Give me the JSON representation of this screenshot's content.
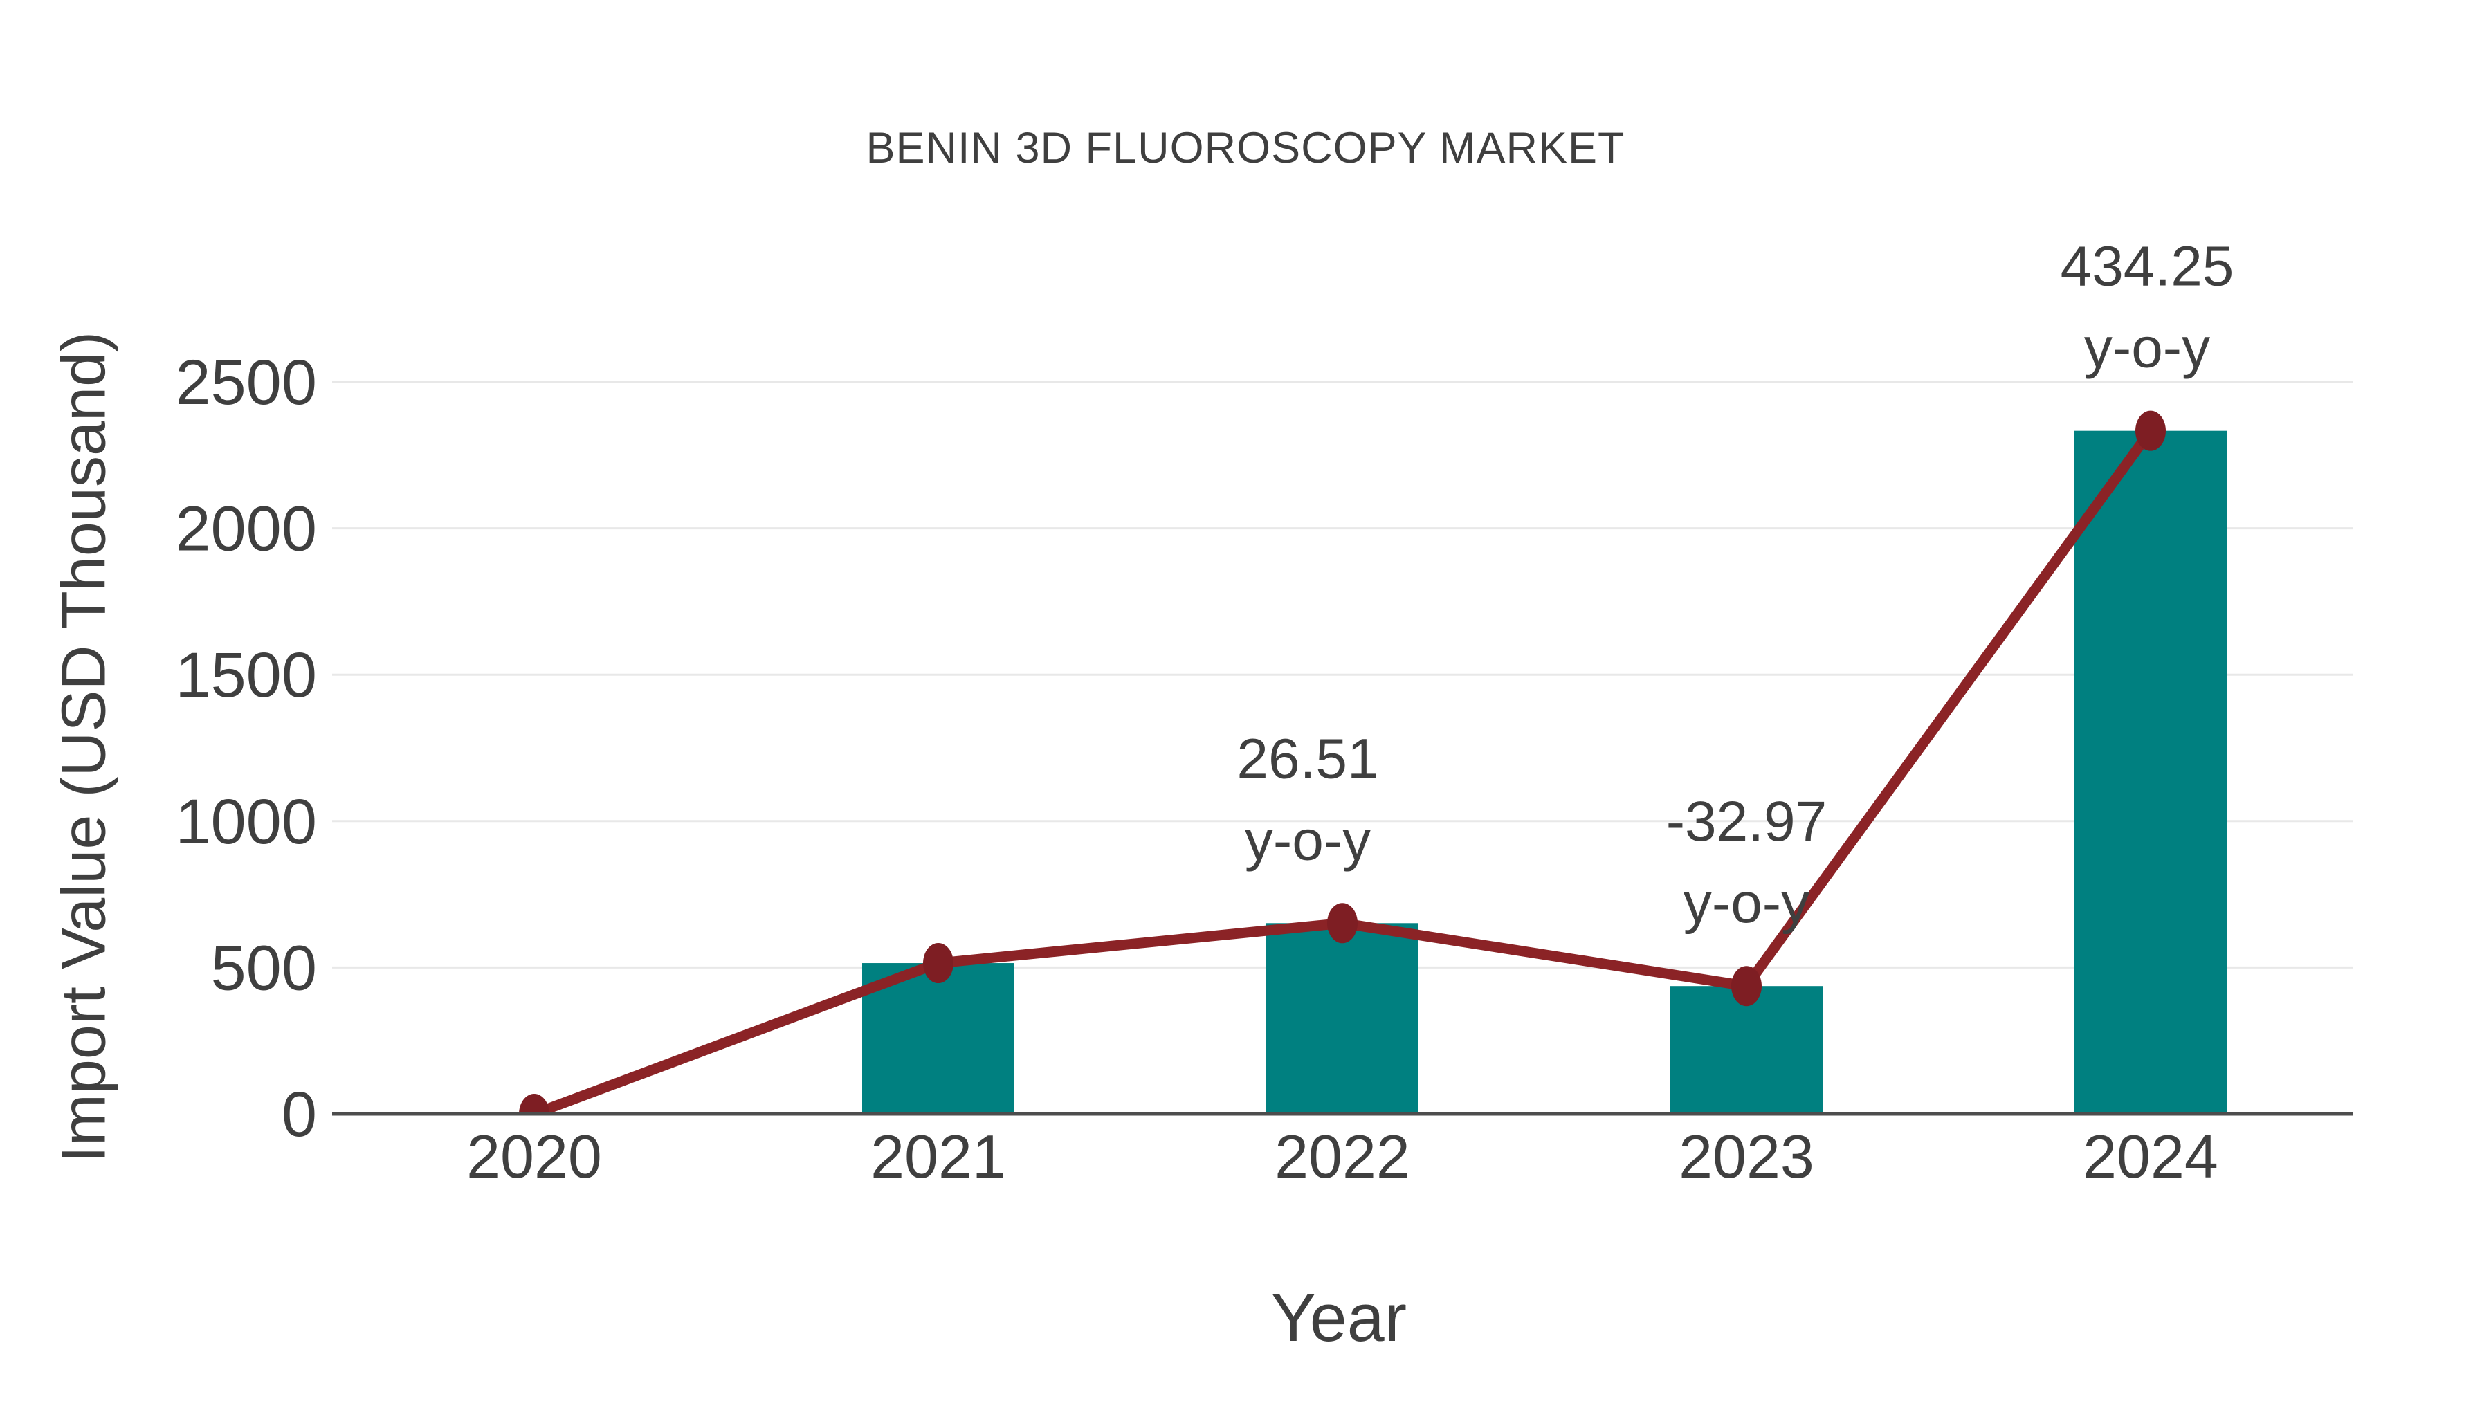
{
  "chart_data": {
    "type": "bar",
    "title": "BENIN 3D FLUOROSCOPY MARKET",
    "xlabel": "Year",
    "ylabel": "Import Value (USD Thousand)",
    "categories": [
      "2020",
      "2021",
      "2022",
      "2023",
      "2024"
    ],
    "y_ticks": [
      0,
      500,
      1000,
      1500,
      2000,
      2500
    ],
    "ylim": [
      0,
      2500
    ],
    "grid": "horizontal",
    "legend_position": "none",
    "series": [
      {
        "name": "Import Value bars",
        "type": "bar",
        "values": [
          0,
          515,
          651.5,
          436.7,
          2333
        ]
      },
      {
        "name": "Import Value trend line",
        "type": "line",
        "values": [
          0,
          515,
          651.5,
          436.7,
          2333
        ]
      }
    ],
    "annotations": [
      {
        "category": "2022",
        "line1": "26.51",
        "line2": "y-o-y",
        "dx": -50
      },
      {
        "category": "2023",
        "line1": "-32.97",
        "line2": "y-o-y",
        "dx": 0
      },
      {
        "category": "2024",
        "line1": "434.25",
        "line2": "y-o-y",
        "dx": -5
      }
    ],
    "colors": {
      "bar": "#008080",
      "line": "#8b2326",
      "marker": "#7e1e23",
      "grid": "#e8e8e8",
      "axis": "#4d4d4d",
      "text": "#3f3f3f",
      "background": "#ffffff"
    }
  }
}
